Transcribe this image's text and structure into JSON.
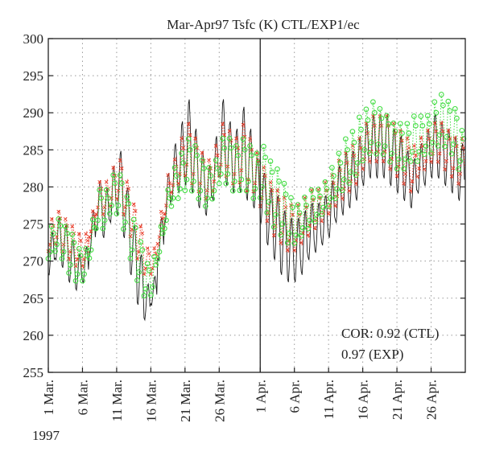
{
  "chart_data": {
    "type": "line",
    "title": "Mar-Apr97 Tsfc (K) CTL/EXP1/ec",
    "year_label": "1997",
    "xlabel": "",
    "ylabel": "",
    "ylim": [
      255,
      300
    ],
    "yticks": [
      255,
      260,
      265,
      270,
      275,
      280,
      285,
      290,
      295,
      300
    ],
    "xlim": [
      "1997-03-01",
      "1997-04-30"
    ],
    "xticks": [
      {
        "date": "1997-03-01",
        "label": "1 Mar."
      },
      {
        "date": "1997-03-06",
        "label": "6 Mar."
      },
      {
        "date": "1997-03-11",
        "label": "11 Mar."
      },
      {
        "date": "1997-03-16",
        "label": "16 Mar."
      },
      {
        "date": "1997-03-21",
        "label": "21 Mar."
      },
      {
        "date": "1997-03-26",
        "label": "26 Mar."
      },
      {
        "date": "1997-04-01",
        "label": "1 Apr."
      },
      {
        "date": "1997-04-06",
        "label": "6 Apr."
      },
      {
        "date": "1997-04-11",
        "label": "11 Apr."
      },
      {
        "date": "1997-04-16",
        "label": "16 Apr."
      },
      {
        "date": "1997-04-21",
        "label": "21 Apr."
      },
      {
        "date": "1997-04-26",
        "label": "26 Apr."
      }
    ],
    "grid": true,
    "divider_date": "1997-04-01",
    "annotations": [
      "COR: 0.92 (CTL)",
      "0.97 (EXP)"
    ],
    "series_styles": [
      {
        "key": "ctl",
        "color": "#1a1a1a",
        "line": "solid"
      },
      {
        "key": "exp",
        "color": "#e8412f",
        "line": "dotted",
        "marker": "x"
      },
      {
        "key": "ec",
        "color": "#44dd44",
        "line": "dotted",
        "marker": "circle"
      }
    ],
    "daily_x": [
      "1997-03-01",
      "1997-03-02",
      "1997-03-03",
      "1997-03-04",
      "1997-03-05",
      "1997-03-06",
      "1997-03-07",
      "1997-03-08",
      "1997-03-09",
      "1997-03-10",
      "1997-03-11",
      "1997-03-12",
      "1997-03-13",
      "1997-03-14",
      "1997-03-15",
      "1997-03-16",
      "1997-03-17",
      "1997-03-18",
      "1997-03-19",
      "1997-03-20",
      "1997-03-21",
      "1997-03-22",
      "1997-03-23",
      "1997-03-24",
      "1997-03-25",
      "1997-03-26",
      "1997-03-27",
      "1997-03-28",
      "1997-03-29",
      "1997-03-30",
      "1997-03-31",
      "1997-04-01",
      "1997-04-02",
      "1997-04-03",
      "1997-04-04",
      "1997-04-05",
      "1997-04-06",
      "1997-04-07",
      "1997-04-08",
      "1997-04-09",
      "1997-04-10",
      "1997-04-11",
      "1997-04-12",
      "1997-04-13",
      "1997-04-14",
      "1997-04-15",
      "1997-04-16",
      "1997-04-17",
      "1997-04-18",
      "1997-04-19",
      "1997-04-20",
      "1997-04-21",
      "1997-04-22",
      "1997-04-23",
      "1997-04-24",
      "1997-04-25",
      "1997-04-26",
      "1997-04-27",
      "1997-04-28",
      "1997-04-29",
      "1997-04-30"
    ],
    "ctl_daily_max": [
      274,
      276,
      275,
      273,
      271,
      272,
      277,
      281,
      280,
      283,
      285,
      280,
      275,
      271,
      267,
      268,
      276,
      282,
      286,
      289,
      292,
      288,
      285,
      283,
      287,
      292,
      289,
      288,
      291,
      288,
      284,
      282,
      280,
      279,
      277,
      276,
      276,
      277,
      278,
      278,
      279,
      281,
      283,
      285,
      285,
      287,
      289,
      290,
      290,
      290,
      288,
      287,
      285,
      284,
      286,
      288,
      290,
      289,
      288,
      287,
      286
    ],
    "ctl_daily_min": [
      268,
      270,
      269,
      267,
      266,
      267,
      271,
      274,
      273,
      275,
      276,
      273,
      268,
      264,
      262,
      264,
      270,
      275,
      278,
      279,
      280,
      279,
      277,
      276,
      278,
      281,
      280,
      279,
      279,
      278,
      277,
      275,
      272,
      270,
      268,
      267,
      267,
      268,
      270,
      271,
      272,
      273,
      275,
      276,
      277,
      278,
      280,
      281,
      281,
      281,
      280,
      279,
      278,
      277,
      279,
      280,
      281,
      281,
      280,
      279,
      278
    ],
    "exp_daily_max": [
      276,
      277,
      276,
      275,
      274,
      274,
      277,
      281,
      281,
      283,
      284,
      281,
      278,
      275,
      272,
      272,
      277,
      282,
      284,
      287,
      289,
      287,
      285,
      284,
      286,
      289,
      288,
      287,
      289,
      287,
      285,
      283,
      281,
      280,
      279,
      278,
      278,
      279,
      280,
      280,
      281,
      282,
      284,
      285,
      286,
      287,
      289,
      290,
      290,
      290,
      289,
      288,
      287,
      286,
      287,
      288,
      289,
      289,
      288,
      287,
      287
    ],
    "exp_daily_min": [
      271,
      272,
      271,
      270,
      269,
      269,
      273,
      276,
      276,
      277,
      278,
      276,
      273,
      270,
      268,
      268,
      272,
      276,
      279,
      280,
      281,
      280,
      279,
      278,
      279,
      281,
      281,
      280,
      280,
      279,
      279,
      277,
      275,
      273,
      272,
      271,
      271,
      272,
      273,
      274,
      275,
      276,
      277,
      278,
      279,
      280,
      282,
      283,
      283,
      283,
      282,
      281,
      280,
      279,
      281,
      282,
      283,
      283,
      282,
      281,
      280
    ],
    "ec_daily_max": [
      275,
      276,
      275,
      274,
      272,
      272,
      276,
      280,
      280,
      282,
      282,
      279,
      276,
      273,
      270,
      271,
      275,
      280,
      283,
      285,
      287,
      286,
      284,
      283,
      284,
      287,
      287,
      286,
      287,
      286,
      285,
      286,
      284,
      283,
      281,
      279,
      278,
      279,
      280,
      280,
      281,
      283,
      285,
      287,
      288,
      290,
      291,
      292,
      291,
      290,
      289,
      289,
      289,
      290,
      290,
      290,
      292,
      293,
      292,
      291,
      288
    ],
    "ec_daily_min": [
      270,
      271,
      270,
      268,
      267,
      267,
      270,
      274,
      274,
      276,
      276,
      274,
      270,
      267,
      265,
      265,
      270,
      274,
      277,
      278,
      279,
      279,
      278,
      277,
      278,
      280,
      280,
      279,
      279,
      279,
      278,
      278,
      276,
      274,
      273,
      272,
      272,
      273,
      274,
      275,
      276,
      277,
      278,
      279,
      280,
      281,
      283,
      284,
      284,
      284,
      283,
      282,
      282,
      283,
      283,
      284,
      284,
      285,
      285,
      284,
      282
    ]
  }
}
